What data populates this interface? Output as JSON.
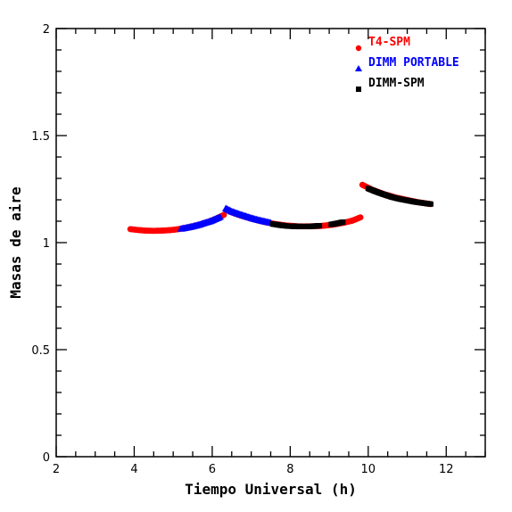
{
  "chart_data": {
    "type": "scatter",
    "xlabel": "Tiempo Universal (h)",
    "ylabel": "Masas de aire",
    "xlim": [
      2,
      13
    ],
    "ylim": [
      0,
      2
    ],
    "xticks": [
      2,
      4,
      6,
      8,
      10,
      12
    ],
    "yticks": [
      0,
      0.5,
      1,
      1.5,
      2
    ],
    "ytick_labels": [
      "0",
      "0.5",
      "1",
      "1.5",
      "2"
    ],
    "grid": false,
    "legend_position": "top-right",
    "series": [
      {
        "name": "T4-SPM",
        "marker": "circle",
        "color": "#ff0000",
        "segments": [
          {
            "x": [
              3.9,
              4.1,
              4.3,
              4.5,
              4.7,
              4.9,
              5.1,
              5.3,
              5.5,
              5.7,
              5.9,
              6.05,
              6.2,
              6.3
            ],
            "y": [
              1.063,
              1.059,
              1.056,
              1.055,
              1.056,
              1.058,
              1.062,
              1.068,
              1.076,
              1.085,
              1.097,
              1.108,
              1.12,
              1.13
            ]
          },
          {
            "x": [
              6.45,
              6.7,
              7.0,
              7.3,
              7.6,
              7.9,
              8.2,
              8.5,
              8.8,
              9.1,
              9.4,
              9.6,
              9.8
            ],
            "y": [
              1.145,
              1.128,
              1.112,
              1.098,
              1.087,
              1.08,
              1.076,
              1.076,
              1.078,
              1.084,
              1.094,
              1.103,
              1.118
            ]
          },
          {
            "x": [
              9.85,
              10.1,
              10.4,
              10.7,
              11.0,
              11.3,
              11.6
            ],
            "y": [
              1.27,
              1.247,
              1.227,
              1.211,
              1.199,
              1.188,
              1.18
            ]
          }
        ]
      },
      {
        "name": "DIMM PORTABLE",
        "marker": "triangle",
        "color": "#0000ff",
        "segments": [
          {
            "x": [
              5.2,
              5.35,
              5.5,
              5.65,
              5.8,
              5.95,
              6.1,
              6.2
            ],
            "y": [
              1.065,
              1.07,
              1.076,
              1.083,
              1.092,
              1.1,
              1.112,
              1.12
            ]
          },
          {
            "x": [
              6.35,
              6.5,
              6.65,
              6.8,
              6.95,
              7.1,
              7.25,
              7.4,
              7.5
            ],
            "y": [
              1.16,
              1.146,
              1.136,
              1.127,
              1.118,
              1.11,
              1.103,
              1.097,
              1.093
            ]
          }
        ]
      },
      {
        "name": "DIMM-SPM",
        "marker": "square",
        "color": "#000000",
        "segments": [
          {
            "x": [
              7.55,
              7.75,
              7.95,
              8.15,
              8.35,
              8.55,
              8.75
            ],
            "y": [
              1.087,
              1.081,
              1.077,
              1.076,
              1.075,
              1.076,
              1.079
            ]
          },
          {
            "x": [
              9.05,
              9.2,
              9.35
            ],
            "y": [
              1.085,
              1.09,
              1.096
            ]
          },
          {
            "x": [
              10.0,
              10.2,
              10.4,
              10.6,
              10.8,
              11.0,
              11.2,
              11.4,
              11.6
            ],
            "y": [
              1.253,
              1.238,
              1.225,
              1.213,
              1.204,
              1.197,
              1.19,
              1.185,
              1.18
            ]
          }
        ]
      }
    ]
  }
}
